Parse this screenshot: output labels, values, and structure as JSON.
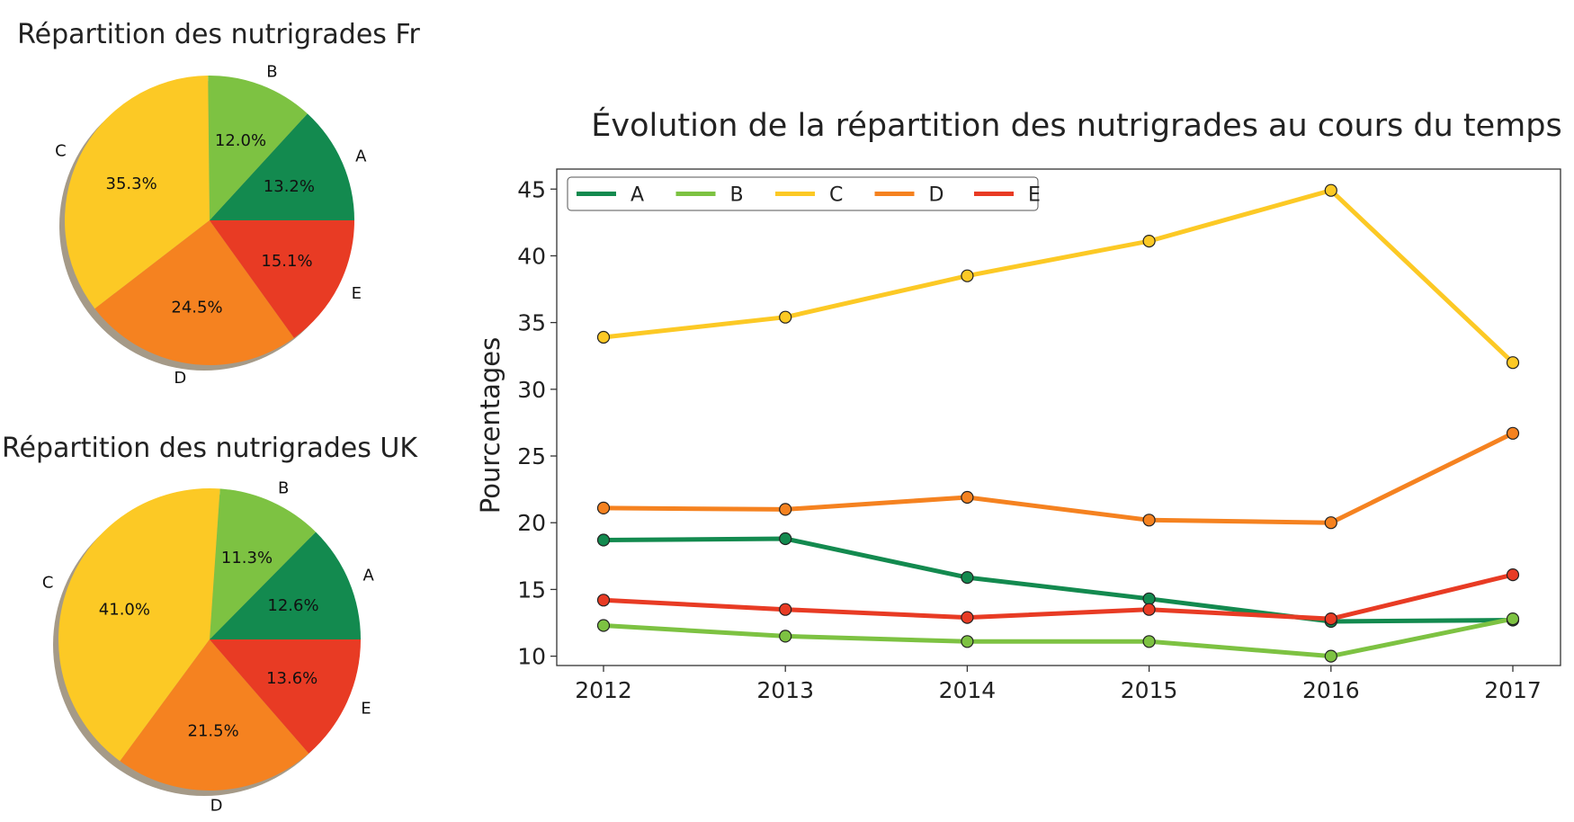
{
  "chart_data": [
    {
      "type": "pie",
      "title": "Répartition des nutrigrades Fr",
      "categories": [
        "A",
        "B",
        "C",
        "D",
        "E"
      ],
      "values": [
        13.2,
        12.0,
        35.3,
        24.5,
        15.1
      ],
      "value_labels": [
        "13.2%",
        "12.0%",
        "35.3%",
        "24.5%",
        "15.1%"
      ],
      "colors": [
        "#138a4f",
        "#7dc242",
        "#fcc925",
        "#f58220",
        "#e83b24"
      ],
      "start_angle_deg": 0,
      "direction": "counterclockwise",
      "shadow": true
    },
    {
      "type": "pie",
      "title": "Répartition des nutrigrades UK",
      "categories": [
        "A",
        "B",
        "C",
        "D",
        "E"
      ],
      "values": [
        12.6,
        11.3,
        41.0,
        21.5,
        13.6
      ],
      "value_labels": [
        "12.6%",
        "11.3%",
        "41.0%",
        "21.5%",
        "13.6%"
      ],
      "colors": [
        "#138a4f",
        "#7dc242",
        "#fcc925",
        "#f58220",
        "#e83b24"
      ],
      "start_angle_deg": 0,
      "direction": "counterclockwise",
      "shadow": true
    },
    {
      "type": "line",
      "title": "Évolution de la répartition des nutrigrades au cours du temps",
      "xlabel": "",
      "ylabel": "Pourcentages",
      "x": [
        2012,
        2013,
        2014,
        2015,
        2016,
        2017
      ],
      "x_tick_labels": [
        "2012",
        "2013",
        "2014",
        "2015",
        "2016",
        "2017"
      ],
      "ylim": [
        9.3,
        46.5
      ],
      "y_ticks": [
        10,
        15,
        20,
        25,
        30,
        35,
        40,
        45
      ],
      "grid": false,
      "legend": "top-left",
      "legend_layout": "single-row",
      "markers": "circle",
      "series": [
        {
          "name": "A",
          "color": "#138a4f",
          "values": [
            18.7,
            18.8,
            15.9,
            14.3,
            12.6,
            12.7
          ]
        },
        {
          "name": "B",
          "color": "#7dc242",
          "values": [
            12.3,
            11.5,
            11.1,
            11.1,
            10.0,
            12.8
          ]
        },
        {
          "name": "C",
          "color": "#fcc925",
          "values": [
            33.9,
            35.4,
            38.5,
            41.1,
            44.9,
            32.0
          ]
        },
        {
          "name": "D",
          "color": "#f58220",
          "values": [
            21.1,
            21.0,
            21.9,
            20.2,
            20.0,
            26.7
          ]
        },
        {
          "name": "E",
          "color": "#e83b24",
          "values": [
            14.2,
            13.5,
            12.9,
            13.5,
            12.8,
            16.1
          ]
        }
      ]
    }
  ]
}
